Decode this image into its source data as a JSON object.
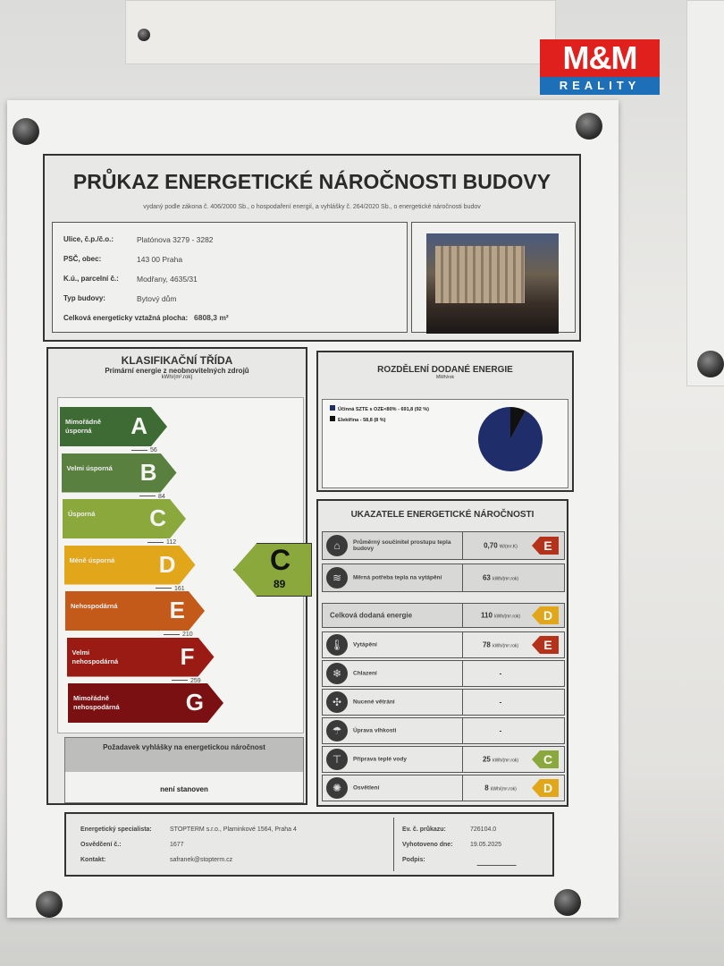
{
  "logo": {
    "top": "M&M",
    "bottom": "REALITY",
    "brand_red": "#e0201c",
    "brand_blue": "#1d6fb8"
  },
  "header": {
    "title": "PRŮKAZ ENERGETICKÉ NÁROČNOSTI BUDOVY",
    "subtitle": "vydaný podle zákona č. 406/2000 Sb., o hospodaření energií, a vyhlášky č. 264/2020 Sb., o energetické náročnosti budov"
  },
  "info": [
    {
      "label": "Ulice, č.p./č.o.:",
      "value": "Platónova 3279 - 3282"
    },
    {
      "label": "PSČ, obec:",
      "value": "143 00 Praha"
    },
    {
      "label": "K.ú., parcelní č.:",
      "value": "Modřany, 4635/31"
    },
    {
      "label": "Typ budovy:",
      "value": "Bytový dům"
    },
    {
      "label": "Celková energeticky vztažná plocha:",
      "value": "6808,3 m²"
    }
  ],
  "classification": {
    "title": "KLASIFIKAČNÍ TŘÍDA",
    "subtitle": "Primární energie z neobnovitelných zdrojů",
    "unit": "kWh/(m².rok)",
    "classes": [
      {
        "letter": "A",
        "label": "Mimořádně úsporná",
        "color": "#3d6b33"
      },
      {
        "letter": "B",
        "label": "Velmi úsporná",
        "color": "#5a8040"
      },
      {
        "letter": "C",
        "label": "Úsporná",
        "color": "#8aa83c"
      },
      {
        "letter": "D",
        "label": "Méně úsporná",
        "color": "#e2a61a"
      },
      {
        "letter": "E",
        "label": "Nehospodárná",
        "color": "#c45a1a"
      },
      {
        "letter": "F",
        "label": "Velmi nehospodárná",
        "color": "#9a1b14"
      },
      {
        "letter": "G",
        "label": "Mimořádně nehospodárná",
        "color": "#7a1012"
      }
    ],
    "thresholds": [
      "56",
      "84",
      "112",
      "161",
      "210",
      "259"
    ],
    "result": {
      "letter": "C",
      "value": "89"
    },
    "requirement": {
      "title": "Požadavek vyhlášky na energetickou náročnost",
      "value": "není stanoven"
    }
  },
  "distribution": {
    "title": "ROZDĚLENÍ DODANÉ ENERGIE",
    "unit": "MWh/rok",
    "items": [
      {
        "label": "Účinná SZTE s OZE<80% - 691,8 (92 %)",
        "value": 691.8,
        "percent": 92,
        "color": "#1f2d6b"
      },
      {
        "label": "Elektřina - 58,8 (8 %)",
        "value": 58.8,
        "percent": 8,
        "color": "#111111"
      }
    ]
  },
  "indicators": {
    "title": "UKAZATELE ENERGETICKÉ NÁROČNOSTI",
    "rows": [
      {
        "icon": "house-icon",
        "name": "Průměrný součinitel prostupu tepla budovy",
        "value": "0,70",
        "unit": "W/(m².K)",
        "class": "E",
        "color": "#b5321a"
      },
      {
        "icon": "heat-demand-icon",
        "name": "Měrná potřeba tepla na vytápění",
        "value": "63",
        "unit": "kWh/(m².rok)",
        "class": "",
        "color": ""
      },
      {
        "icon": "",
        "name": "Celková dodaná energie",
        "value": "110",
        "unit": "kWh/(m².rok)",
        "class": "D",
        "color": "#e2a61a"
      },
      {
        "icon": "thermometer-icon",
        "name": "Vytápění",
        "value": "78",
        "unit": "kWh/(m².rok)",
        "class": "E",
        "color": "#b5321a"
      },
      {
        "icon": "cooling-icon",
        "name": "Chlazení",
        "value": "-",
        "unit": "",
        "class": "",
        "color": ""
      },
      {
        "icon": "fan-icon",
        "name": "Nucené větrání",
        "value": "-",
        "unit": "",
        "class": "",
        "color": ""
      },
      {
        "icon": "humidity-icon",
        "name": "Úprava vlhkosti",
        "value": "-",
        "unit": "",
        "class": "",
        "color": ""
      },
      {
        "icon": "tap-icon",
        "name": "Příprava teplé vody",
        "value": "25",
        "unit": "kWh/(m².rok)",
        "class": "C",
        "color": "#8aa83c"
      },
      {
        "icon": "bulb-icon",
        "name": "Osvětlení",
        "value": "8",
        "unit": "kWh/(m².rok)",
        "class": "D",
        "color": "#e2a61a"
      }
    ]
  },
  "footer": {
    "specialist_label": "Energetický specialista:",
    "specialist": "STOPTERM s.r.o., Plaminkové 1564, Praha 4",
    "cert_label": "Osvědčení č.:",
    "cert": "1677",
    "contact_label": "Kontakt:",
    "contact": "safranek@stopterm.cz",
    "ev_label": "Ev. č. průkazu:",
    "ev": "726104.0",
    "date_label": "Vyhotoveno dne:",
    "date": "19.05.2025",
    "sign_label": "Podpis:"
  }
}
